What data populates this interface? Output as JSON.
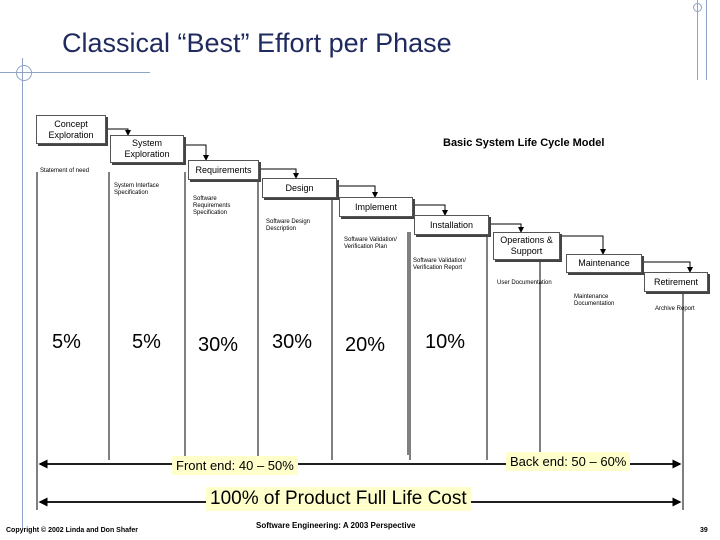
{
  "slide": {
    "title": "Classical “Best” Effort per Phase",
    "model_title": "Basic System Life Cycle Model"
  },
  "phases": [
    {
      "name": "Concept Exploration"
    },
    {
      "name": "System Exploration"
    },
    {
      "name": "Requirements"
    },
    {
      "name": "Design"
    },
    {
      "name": "Implement"
    },
    {
      "name": "Installation"
    },
    {
      "name": "Operations & Support"
    },
    {
      "name": "Maintenance"
    },
    {
      "name": "Retirement"
    }
  ],
  "deliverables": [
    {
      "text": "Statement of need"
    },
    {
      "text": "System Interface Specification"
    },
    {
      "text": "Software Requirements Specification"
    },
    {
      "text": "Software Design Description"
    },
    {
      "text": "Software Validation/ Verification Plan"
    },
    {
      "text": "Software Validation/ Verification Report"
    },
    {
      "text": "User Documentation"
    },
    {
      "text": "Maintenance Documentation"
    },
    {
      "text": "Archive Report"
    }
  ],
  "effort": [
    "5%",
    "5%",
    "30%",
    "30%",
    "20%",
    "10%"
  ],
  "spans": {
    "front_end": "Front end: 40 – 50%",
    "back_end": "Back end: 50 – 60%",
    "total": "100% of Product Full Life Cost"
  },
  "footer": {
    "copyright": "Copyright © 2002 Linda and Don Shafer",
    "book": "Software Engineering: A 2003 Perspective",
    "page": "39"
  }
}
